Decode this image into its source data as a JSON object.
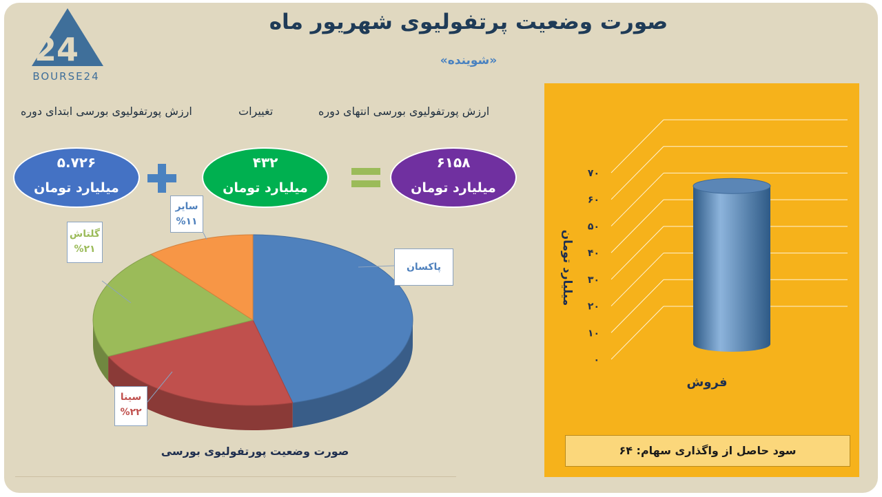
{
  "header": {
    "title": "صورت وضعیت پرتفولیوی شهریور ماه",
    "subtitle": "«شوینده»",
    "logo_text": "BOURSE24",
    "logo_number": "24"
  },
  "equation": {
    "end_label": "ارزش پورتفولیوی بورسی انتهای دوره",
    "change_label": "تغییرات",
    "start_label": "ارزش پورتفولیوی بورسی ابتدای دوره",
    "end_value": "۶۱۵۸",
    "end_unit": "میلیارد تومان",
    "change_value": "۴۳۲",
    "change_unit": "میلیارد تومان",
    "start_value": "۵.۷۲۶",
    "start_unit": "میلیارد تومان",
    "equals_sign": "=",
    "plus_sign": "+",
    "colors": {
      "end": "#7030a0",
      "change": "#00b050",
      "start": "#4472c4"
    }
  },
  "pie_caption": "صورت وضعیت پورتفولیوی بورسی",
  "profit_text": "سود حاصل از واگذاری سهام: ۶۴",
  "chart_data": [
    {
      "type": "pie",
      "title": "",
      "slices": [
        {
          "label": "پاکسان",
          "percent_text": "",
          "value": 46,
          "color": "#4f81bd"
        },
        {
          "label": "سینا",
          "percent_text": "%۲۲",
          "value": 22,
          "color": "#c0504d"
        },
        {
          "label": "گلتاش",
          "percent_text": "%۲۱",
          "value": 21,
          "color": "#9bbb59"
        },
        {
          "label": "سایر",
          "percent_text": "%۱۱",
          "value": 11,
          "color": "#f79646"
        }
      ]
    },
    {
      "type": "bar",
      "categories": [
        "فروش"
      ],
      "values": [
        64
      ],
      "ylabel": "میلیارد تومان",
      "ylim": [
        0,
        70
      ],
      "yticks": [
        "۰",
        "۱۰",
        "۲۰",
        "۳۰",
        "۴۰",
        "۵۰",
        "۶۰",
        "۷۰"
      ],
      "bar_color": "#4f81bd",
      "background": "#f6b21b",
      "grid": true
    }
  ]
}
